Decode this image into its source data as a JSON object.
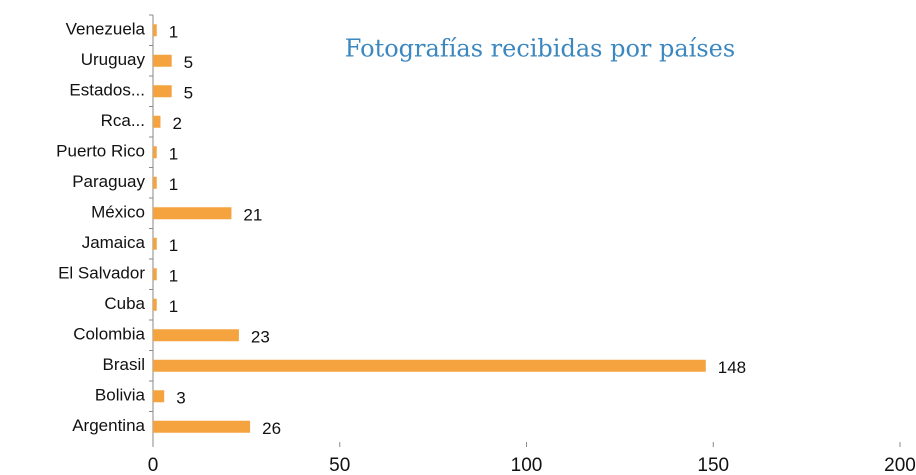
{
  "chart_data": {
    "type": "barh",
    "title": "Fotografías recibidas por países",
    "categories": [
      "Venezuela",
      "Uruguay",
      "Estados...",
      "Rca...",
      "Puerto Rico",
      "Paraguay",
      "México",
      "Jamaica",
      "El Salvador",
      "Cuba",
      "Colombia",
      "Brasil",
      "Bolivia",
      "Argentina"
    ],
    "values": [
      1,
      5,
      5,
      2,
      1,
      1,
      21,
      1,
      1,
      1,
      23,
      148,
      3,
      26
    ],
    "color": "#f5a33e",
    "xlim": [
      0,
      200
    ],
    "xticks": [
      0,
      50,
      100,
      150,
      200
    ],
    "grid": false
  }
}
